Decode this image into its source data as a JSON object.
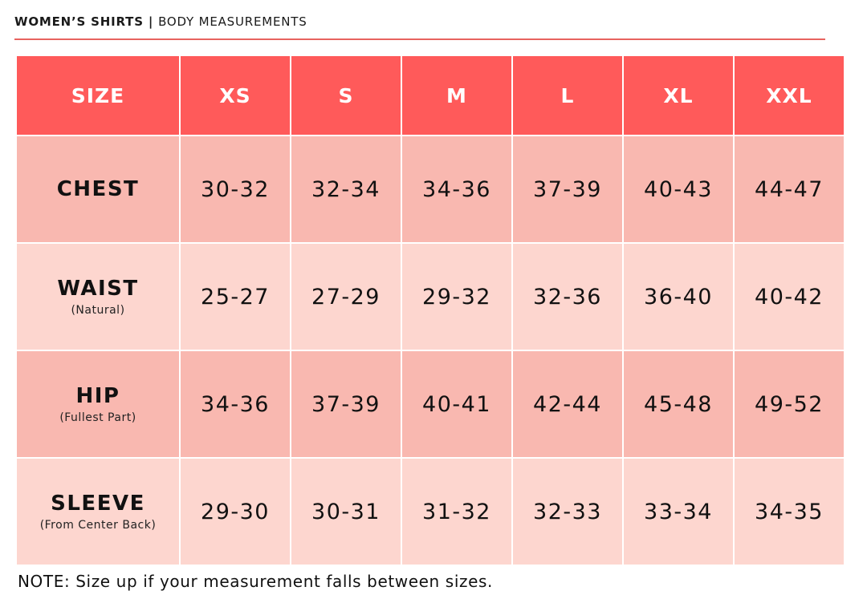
{
  "header": {
    "title": "WOMEN’S SHIRTS",
    "separator": "|",
    "subtitle": "BODY MEASUREMENTS"
  },
  "table": {
    "corner_label": "SIZE",
    "sizes": [
      "XS",
      "S",
      "M",
      "L",
      "XL",
      "XXL"
    ],
    "rows": [
      {
        "label": "CHEST",
        "sub": "",
        "values": [
          "30-32",
          "32-34",
          "34-36",
          "37-39",
          "40-43",
          "44-47"
        ]
      },
      {
        "label": "WAIST",
        "sub": "(Natural)",
        "values": [
          "25-27",
          "27-29",
          "29-32",
          "32-36",
          "36-40",
          "40-42"
        ]
      },
      {
        "label": "HIP",
        "sub": "(Fullest Part)",
        "values": [
          "34-36",
          "37-39",
          "40-41",
          "42-44",
          "45-48",
          "49-52"
        ]
      },
      {
        "label": "SLEEVE",
        "sub": "(From Center Back)",
        "values": [
          "29-30",
          "30-31",
          "31-32",
          "32-33",
          "33-34",
          "34-35"
        ]
      }
    ]
  },
  "note": "NOTE: Size up if your measurement falls between sizes.",
  "colors": {
    "accent": "#e8635f",
    "header_bg": "#ff5a5a",
    "row_dark": "#f9b8b0",
    "row_light": "#fdd6cf"
  }
}
